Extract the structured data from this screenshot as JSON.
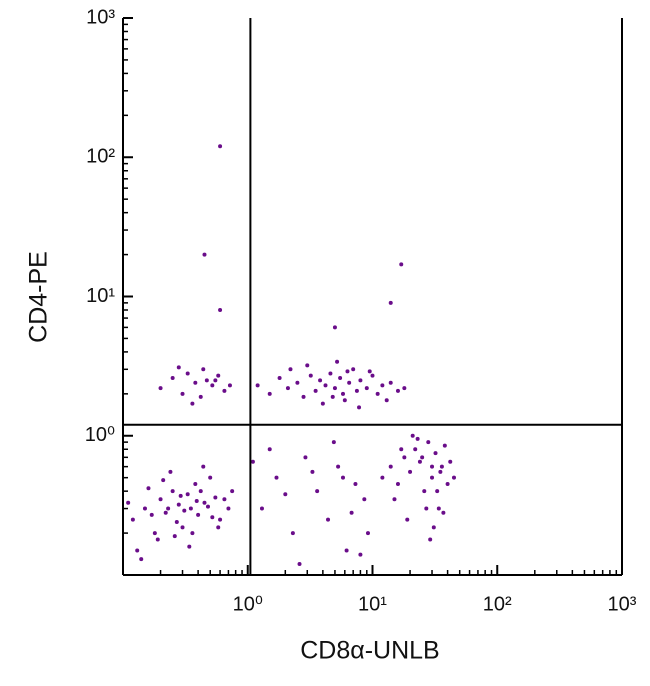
{
  "chart_data": {
    "type": "scatter",
    "x_label": "CD8α-UNLB",
    "y_label": "CD4-PE",
    "log_x": true,
    "log_y": true,
    "minor_ticks": true,
    "xlim": [
      0.1,
      1000
    ],
    "ylim": [
      0.1,
      1000
    ],
    "xticks": [
      {
        "value": 1,
        "label": "10⁰"
      },
      {
        "value": 10,
        "label": "10¹"
      },
      {
        "value": 100,
        "label": "10²"
      },
      {
        "value": 1000,
        "label": "10³"
      }
    ],
    "yticks": [
      {
        "value": 1,
        "label": "10⁰"
      },
      {
        "value": 10,
        "label": "10¹"
      },
      {
        "value": 100,
        "label": "10²"
      },
      {
        "value": 1000,
        "label": "10³"
      }
    ],
    "gates": {
      "x": 1.05,
      "y": 1.2
    },
    "color": "#6a0d8a",
    "x": [
      0.12,
      0.15,
      0.18,
      0.2,
      0.22,
      0.25,
      0.28,
      0.3,
      0.33,
      0.35,
      0.38,
      0.4,
      0.45,
      0.5,
      0.55,
      0.6,
      0.7,
      0.13,
      0.16,
      0.19,
      0.24,
      0.27,
      0.31,
      0.36,
      0.42,
      0.48,
      0.52,
      0.65,
      0.11,
      0.14,
      0.17,
      0.21,
      0.26,
      0.29,
      0.34,
      0.39,
      0.44,
      0.58,
      0.75,
      0.23,
      0.2,
      0.25,
      0.3,
      0.33,
      0.38,
      0.42,
      0.47,
      0.52,
      0.58,
      0.65,
      0.28,
      0.36,
      0.44,
      0.55,
      0.72,
      1.2,
      1.5,
      1.8,
      2.1,
      2.5,
      2.8,
      3.2,
      3.5,
      3.8,
      4.2,
      4.6,
      5,
      5.5,
      6,
      6.5,
      7,
      7.5,
      8,
      9,
      10,
      11,
      12,
      14,
      16,
      18,
      3,
      4,
      5.2,
      6.3,
      7.8,
      2.2,
      9.5,
      4.8,
      5.8,
      13,
      12,
      14,
      16,
      18,
      20,
      22,
      24,
      26,
      28,
      30,
      32,
      34,
      36,
      38,
      40,
      15,
      19,
      23,
      27,
      31,
      35,
      25,
      29,
      33,
      21,
      17,
      37,
      42,
      45,
      30,
      1.3,
      1.7,
      2.3,
      2.9,
      3.6,
      4.4,
      5.3,
      6.2,
      7.3,
      8.6,
      1.5,
      2.6,
      3.3,
      4.9,
      6.8,
      9.2,
      1.1,
      2.0,
      5.8,
      8.0,
      0.6,
      0.45,
      0.6,
      17,
      14,
      5
    ],
    "y": [
      0.25,
      0.3,
      0.2,
      0.35,
      0.28,
      0.4,
      0.32,
      0.22,
      0.38,
      0.3,
      0.45,
      0.27,
      0.33,
      0.5,
      0.36,
      0.25,
      0.3,
      0.15,
      0.42,
      0.18,
      0.55,
      0.24,
      0.29,
      0.2,
      0.4,
      0.31,
      0.26,
      0.35,
      0.33,
      0.13,
      0.27,
      0.48,
      0.19,
      0.37,
      0.16,
      0.34,
      0.6,
      0.22,
      0.4,
      0.3,
      2.2,
      2.6,
      2.0,
      2.8,
      2.4,
      1.9,
      2.5,
      2.3,
      2.7,
      2.1,
      3.1,
      1.7,
      3.0,
      2.5,
      2.3,
      2.3,
      2.0,
      2.6,
      2.2,
      2.4,
      1.9,
      2.7,
      2.1,
      2.5,
      2.3,
      2.8,
      2.2,
      2.6,
      1.8,
      2.4,
      3.0,
      2.1,
      2.5,
      2.2,
      2.7,
      2.0,
      2.3,
      2.4,
      2.1,
      2.2,
      3.2,
      1.7,
      3.4,
      2.9,
      1.6,
      3.0,
      2.9,
      1.9,
      2.0,
      1.8,
      0.5,
      0.6,
      0.45,
      0.7,
      0.55,
      0.8,
      0.65,
      0.4,
      0.9,
      0.5,
      0.75,
      0.3,
      0.6,
      0.85,
      0.45,
      0.35,
      0.25,
      0.95,
      0.3,
      0.22,
      0.55,
      0.7,
      0.18,
      0.4,
      1.0,
      0.8,
      0.28,
      0.65,
      0.5,
      0.6,
      0.3,
      0.5,
      0.2,
      0.7,
      0.4,
      0.25,
      0.6,
      0.15,
      0.45,
      0.35,
      0.8,
      0.12,
      0.55,
      0.9,
      0.28,
      0.2,
      0.65,
      0.38,
      0.5,
      0.14,
      120,
      20,
      8,
      17,
      9,
      6
    ]
  }
}
